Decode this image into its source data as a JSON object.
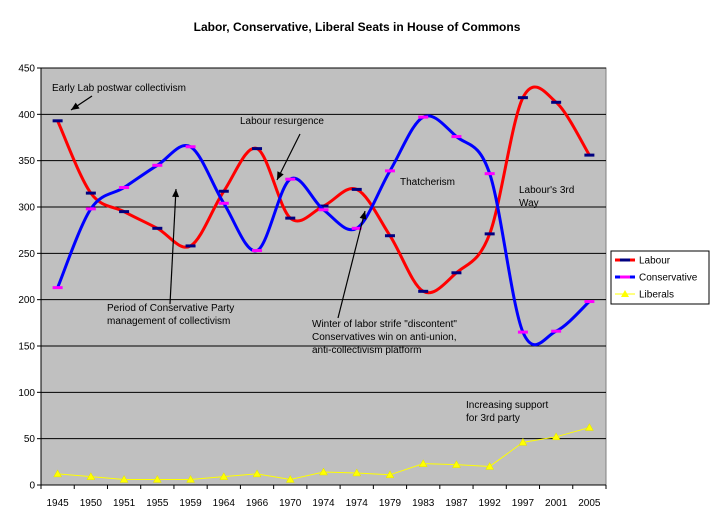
{
  "chart_data": {
    "type": "line",
    "title": "Labor, Conservative, Liberal Seats in House of Commons",
    "xlabel": "",
    "ylabel": "",
    "ylim": [
      0,
      450
    ],
    "yticks": [
      0,
      50,
      100,
      150,
      200,
      250,
      300,
      350,
      400,
      450
    ],
    "grid": true,
    "legend_position": "right",
    "categories": [
      "1945",
      "1950",
      "1951",
      "1955",
      "1959",
      "1964",
      "1966",
      "1970",
      "1974",
      "1974",
      "1979",
      "1983",
      "1987",
      "1992",
      "1997",
      "2001",
      "2005"
    ],
    "series": [
      {
        "name": "Labour",
        "color": "#ff0000",
        "marker": "dash-navy",
        "values": [
          393,
          315,
          295,
          277,
          258,
          317,
          363,
          288,
          301,
          319,
          269,
          209,
          229,
          271,
          418,
          413,
          356
        ]
      },
      {
        "name": "Conservative",
        "color": "#0000ff",
        "marker": "dash-magenta",
        "values": [
          213,
          298,
          321,
          345,
          365,
          304,
          253,
          330,
          297,
          277,
          339,
          397,
          376,
          336,
          165,
          166,
          198
        ]
      },
      {
        "name": "Liberals",
        "color": "#ffff00",
        "marker": "triangle",
        "values": [
          12,
          9,
          6,
          6,
          6,
          9,
          12,
          6,
          14,
          13,
          11,
          23,
          22,
          20,
          46,
          52,
          62
        ]
      }
    ],
    "annotations": [
      {
        "text": [
          "Early Lab postwar collectivism"
        ],
        "x_index": 0,
        "y": 393
      },
      {
        "text": [
          "Labour resurgence"
        ],
        "x_index": 7,
        "y": 330
      },
      {
        "text": [
          "Period of Conservative Party",
          "management of collectivism"
        ],
        "x_index": 4,
        "y": 320
      },
      {
        "text": [
          "Thatcherism"
        ],
        "x_index": 10,
        "y": 0
      },
      {
        "text": [
          "Labour's 3rd",
          "Way"
        ],
        "x_index": 14,
        "y": 0
      },
      {
        "text": [
          "Winter of labor strife \"discontent\"",
          "Conservatives win on anti-union,",
          "anti-collectivism platform"
        ],
        "x_index": 9,
        "y": 297
      },
      {
        "text": [
          "Increasing support",
          "for 3rd party"
        ],
        "x_index": 13,
        "y": 0
      }
    ]
  }
}
